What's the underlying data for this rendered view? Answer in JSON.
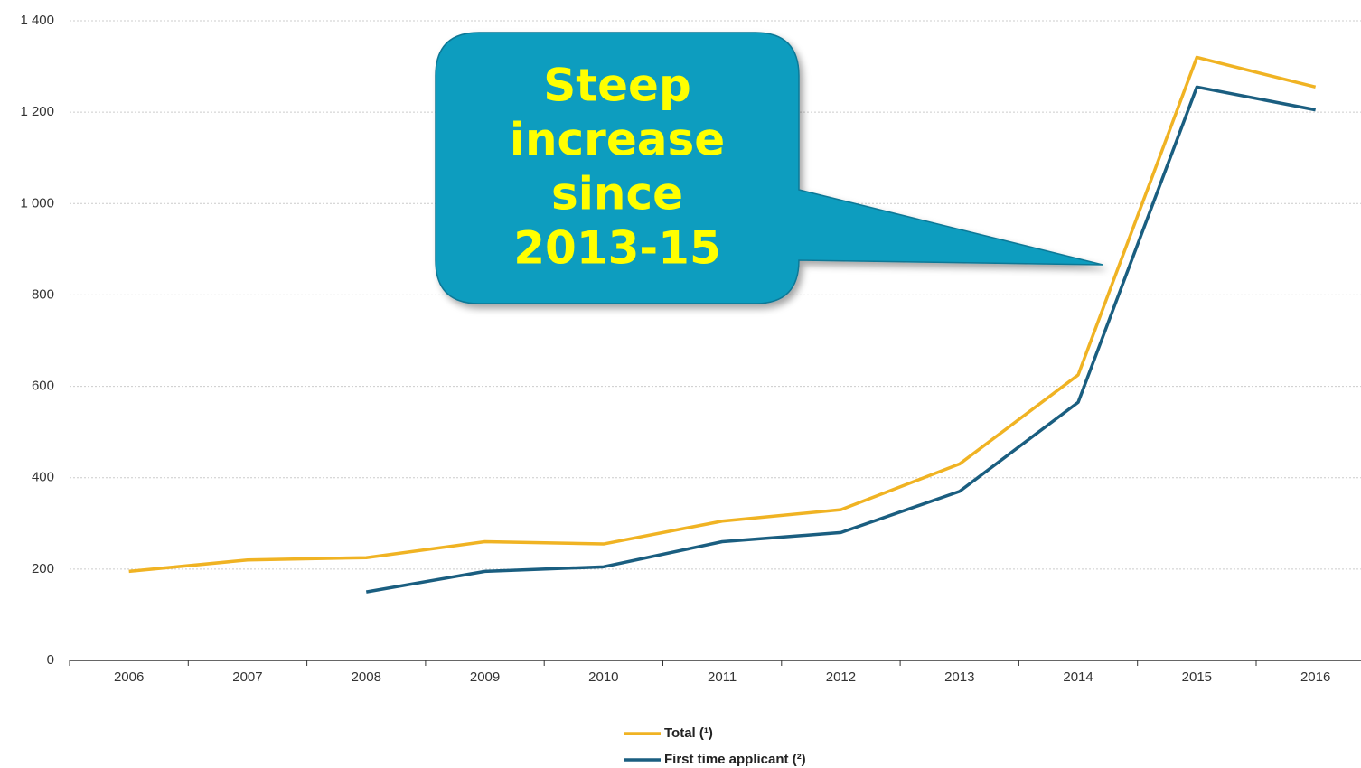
{
  "chart_data": {
    "type": "line",
    "categories": [
      "2006",
      "2007",
      "2008",
      "2009",
      "2010",
      "2011",
      "2012",
      "2013",
      "2014",
      "2015",
      "2016"
    ],
    "series": [
      {
        "name": "Total (¹)",
        "color": "#f0b323",
        "values": [
          195,
          220,
          225,
          260,
          255,
          305,
          330,
          430,
          625,
          1320,
          1255
        ]
      },
      {
        "name": "First time applicant (²)",
        "color": "#1a5e80",
        "values": [
          null,
          null,
          150,
          195,
          205,
          260,
          280,
          370,
          565,
          1255,
          1205
        ]
      }
    ],
    "ylim": [
      0,
      1400
    ],
    "yticks": [
      0,
      200,
      400,
      600,
      800,
      {
        "value": 1000,
        "label": "1 000"
      },
      {
        "value": 1200,
        "label": "1 200"
      },
      {
        "value": 1400,
        "label": "1 400"
      }
    ],
    "grid": true,
    "annotation_lines": [
      "Steep",
      "increase",
      "since",
      "2013-15"
    ]
  }
}
